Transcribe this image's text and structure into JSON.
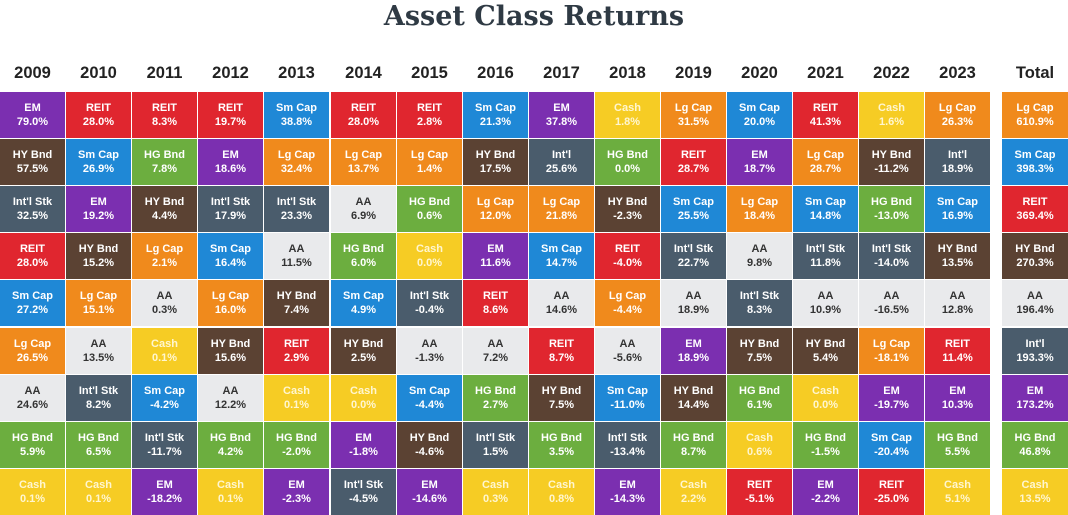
{
  "chart_data": {
    "type": "table",
    "title": "Asset Class Returns",
    "columns": [
      "2009",
      "2010",
      "2011",
      "2012",
      "2013",
      "2014",
      "2015",
      "2016",
      "2017",
      "2018",
      "2019",
      "2020",
      "2021",
      "2022",
      "2023",
      "Total"
    ],
    "rows": [
      [
        [
          "EM",
          "79.0%"
        ],
        [
          "HY Bnd",
          "57.5%"
        ],
        [
          "Int'l Stk",
          "32.5%"
        ],
        [
          "REIT",
          "28.0%"
        ],
        [
          "Sm Cap",
          "27.2%"
        ],
        [
          "Lg Cap",
          "26.5%"
        ],
        [
          "AA",
          "24.6%"
        ],
        [
          "HG Bnd",
          "5.9%"
        ],
        [
          "Cash",
          "0.1%"
        ]
      ],
      [
        [
          "REIT",
          "28.0%"
        ],
        [
          "Sm Cap",
          "26.9%"
        ],
        [
          "EM",
          "19.2%"
        ],
        [
          "HY Bnd",
          "15.2%"
        ],
        [
          "Lg Cap",
          "15.1%"
        ],
        [
          "AA",
          "13.5%"
        ],
        [
          "Int'l Stk",
          "8.2%"
        ],
        [
          "HG Bnd",
          "6.5%"
        ],
        [
          "Cash",
          "0.1%"
        ]
      ],
      [
        [
          "REIT",
          "8.3%"
        ],
        [
          "HG Bnd",
          "7.8%"
        ],
        [
          "HY Bnd",
          "4.4%"
        ],
        [
          "Lg Cap",
          "2.1%"
        ],
        [
          "AA",
          "0.3%"
        ],
        [
          "Cash",
          "0.1%"
        ],
        [
          "Sm Cap",
          "-4.2%"
        ],
        [
          "Int'l Stk",
          "-11.7%"
        ],
        [
          "EM",
          "-18.2%"
        ]
      ],
      [
        [
          "REIT",
          "19.7%"
        ],
        [
          "EM",
          "18.6%"
        ],
        [
          "Int'l Stk",
          "17.9%"
        ],
        [
          "Sm Cap",
          "16.4%"
        ],
        [
          "Lg Cap",
          "16.0%"
        ],
        [
          "HY Bnd",
          "15.6%"
        ],
        [
          "AA",
          "12.2%"
        ],
        [
          "HG Bnd",
          "4.2%"
        ],
        [
          "Cash",
          "0.1%"
        ]
      ],
      [
        [
          "Sm Cap",
          "38.8%"
        ],
        [
          "Lg Cap",
          "32.4%"
        ],
        [
          "Int'l Stk",
          "23.3%"
        ],
        [
          "AA",
          "11.5%"
        ],
        [
          "HY Bnd",
          "7.4%"
        ],
        [
          "REIT",
          "2.9%"
        ],
        [
          "Cash",
          "0.1%"
        ],
        [
          "HG Bnd",
          "-2.0%"
        ],
        [
          "EM",
          "-2.3%"
        ]
      ],
      [
        [
          "REIT",
          "28.0%"
        ],
        [
          "Lg Cap",
          "13.7%"
        ],
        [
          "AA",
          "6.9%"
        ],
        [
          "HG Bnd",
          "6.0%"
        ],
        [
          "Sm Cap",
          "4.9%"
        ],
        [
          "HY Bnd",
          "2.5%"
        ],
        [
          "Cash",
          "0.0%"
        ],
        [
          "EM",
          "-1.8%"
        ],
        [
          "Int'l Stk",
          "-4.5%"
        ]
      ],
      [
        [
          "REIT",
          "2.8%"
        ],
        [
          "Lg Cap",
          "1.4%"
        ],
        [
          "HG Bnd",
          "0.6%"
        ],
        [
          "Cash",
          "0.0%"
        ],
        [
          "Int'l Stk",
          "-0.4%"
        ],
        [
          "AA",
          "-1.3%"
        ],
        [
          "Sm Cap",
          "-4.4%"
        ],
        [
          "HY Bnd",
          "-4.6%"
        ],
        [
          "EM",
          "-14.6%"
        ]
      ],
      [
        [
          "Sm Cap",
          "21.3%"
        ],
        [
          "HY Bnd",
          "17.5%"
        ],
        [
          "Lg Cap",
          "12.0%"
        ],
        [
          "EM",
          "11.6%"
        ],
        [
          "REIT",
          "8.6%"
        ],
        [
          "AA",
          "7.2%"
        ],
        [
          "HG Bnd",
          "2.7%"
        ],
        [
          "Int'l Stk",
          "1.5%"
        ],
        [
          "Cash",
          "0.3%"
        ]
      ],
      [
        [
          "EM",
          "37.8%"
        ],
        [
          "Int'l",
          "25.6%"
        ],
        [
          "Lg Cap",
          "21.8%"
        ],
        [
          "Sm Cap",
          "14.7%"
        ],
        [
          "AA",
          "14.6%"
        ],
        [
          "REIT",
          "8.7%"
        ],
        [
          "HY Bnd",
          "7.5%"
        ],
        [
          "HG Bnd",
          "3.5%"
        ],
        [
          "Cash",
          "0.8%"
        ]
      ],
      [
        [
          "Cash",
          "1.8%"
        ],
        [
          "HG Bnd",
          "0.0%"
        ],
        [
          "HY Bnd",
          "-2.3%"
        ],
        [
          "REIT",
          "-4.0%"
        ],
        [
          "Lg Cap",
          "-4.4%"
        ],
        [
          "AA",
          "-5.6%"
        ],
        [
          "Sm Cap",
          "-11.0%"
        ],
        [
          "Int'l Stk",
          "-13.4%"
        ],
        [
          "EM",
          "-14.3%"
        ]
      ],
      [
        [
          "Lg Cap",
          "31.5%"
        ],
        [
          "REIT",
          "28.7%"
        ],
        [
          "Sm Cap",
          "25.5%"
        ],
        [
          "Int'l Stk",
          "22.7%"
        ],
        [
          "AA",
          "18.9%"
        ],
        [
          "EM",
          "18.9%"
        ],
        [
          "HY Bnd",
          "14.4%"
        ],
        [
          "HG Bnd",
          "8.7%"
        ],
        [
          "Cash",
          "2.2%"
        ]
      ],
      [
        [
          "Sm Cap",
          "20.0%"
        ],
        [
          "EM",
          "18.7%"
        ],
        [
          "Lg Cap",
          "18.4%"
        ],
        [
          "AA",
          "9.8%"
        ],
        [
          "Int'l Stk",
          "8.3%"
        ],
        [
          "HY Bnd",
          "7.5%"
        ],
        [
          "HG Bnd",
          "6.1%"
        ],
        [
          "Cash",
          "0.6%"
        ],
        [
          "REIT",
          "-5.1%"
        ]
      ],
      [
        [
          "REIT",
          "41.3%"
        ],
        [
          "Lg Cap",
          "28.7%"
        ],
        [
          "Sm Cap",
          "14.8%"
        ],
        [
          "Int'l Stk",
          "11.8%"
        ],
        [
          "AA",
          "10.9%"
        ],
        [
          "HY Bnd",
          "5.4%"
        ],
        [
          "Cash",
          "0.0%"
        ],
        [
          "HG Bnd",
          "-1.5%"
        ],
        [
          "EM",
          "-2.2%"
        ]
      ],
      [
        [
          "Cash",
          "1.6%"
        ],
        [
          "HY Bnd",
          "-11.2%"
        ],
        [
          "HG Bnd",
          "-13.0%"
        ],
        [
          "Int'l Stk",
          "-14.0%"
        ],
        [
          "AA",
          "-16.5%"
        ],
        [
          "Lg Cap",
          "-18.1%"
        ],
        [
          "EM",
          "-19.7%"
        ],
        [
          "Sm Cap",
          "-20.4%"
        ],
        [
          "REIT",
          "-25.0%"
        ]
      ],
      [
        [
          "Lg Cap",
          "26.3%"
        ],
        [
          "Int'l",
          "18.9%"
        ],
        [
          "Sm Cap",
          "16.9%"
        ],
        [
          "HY Bnd",
          "13.5%"
        ],
        [
          "AA",
          "12.8%"
        ],
        [
          "REIT",
          "11.4%"
        ],
        [
          "EM",
          "10.3%"
        ],
        [
          "HG Bnd",
          "5.5%"
        ],
        [
          "Cash",
          "5.1%"
        ]
      ],
      [
        [
          "Lg Cap",
          "610.9%"
        ],
        [
          "Sm Cap",
          "398.3%"
        ],
        [
          "REIT",
          "369.4%"
        ],
        [
          "HY Bnd",
          "270.3%"
        ],
        [
          "AA",
          "196.4%"
        ],
        [
          "Int'l",
          "193.3%"
        ],
        [
          "EM",
          "173.2%"
        ],
        [
          "HG Bnd",
          "46.8%"
        ],
        [
          "Cash",
          "13.5%"
        ]
      ]
    ]
  },
  "colors": {
    "EM": "#7b2fb0",
    "REIT": "#e0262f",
    "Sm Cap": "#1f88d6",
    "Lg Cap": "#f08a1c",
    "Cash": "#f6cc24",
    "HY Bnd": "#5b4233",
    "Int'l Stk": "#4a5c6c",
    "Int'l": "#4a5c6c",
    "HG Bnd": "#6cae3f",
    "AA": "#e9eaec"
  }
}
